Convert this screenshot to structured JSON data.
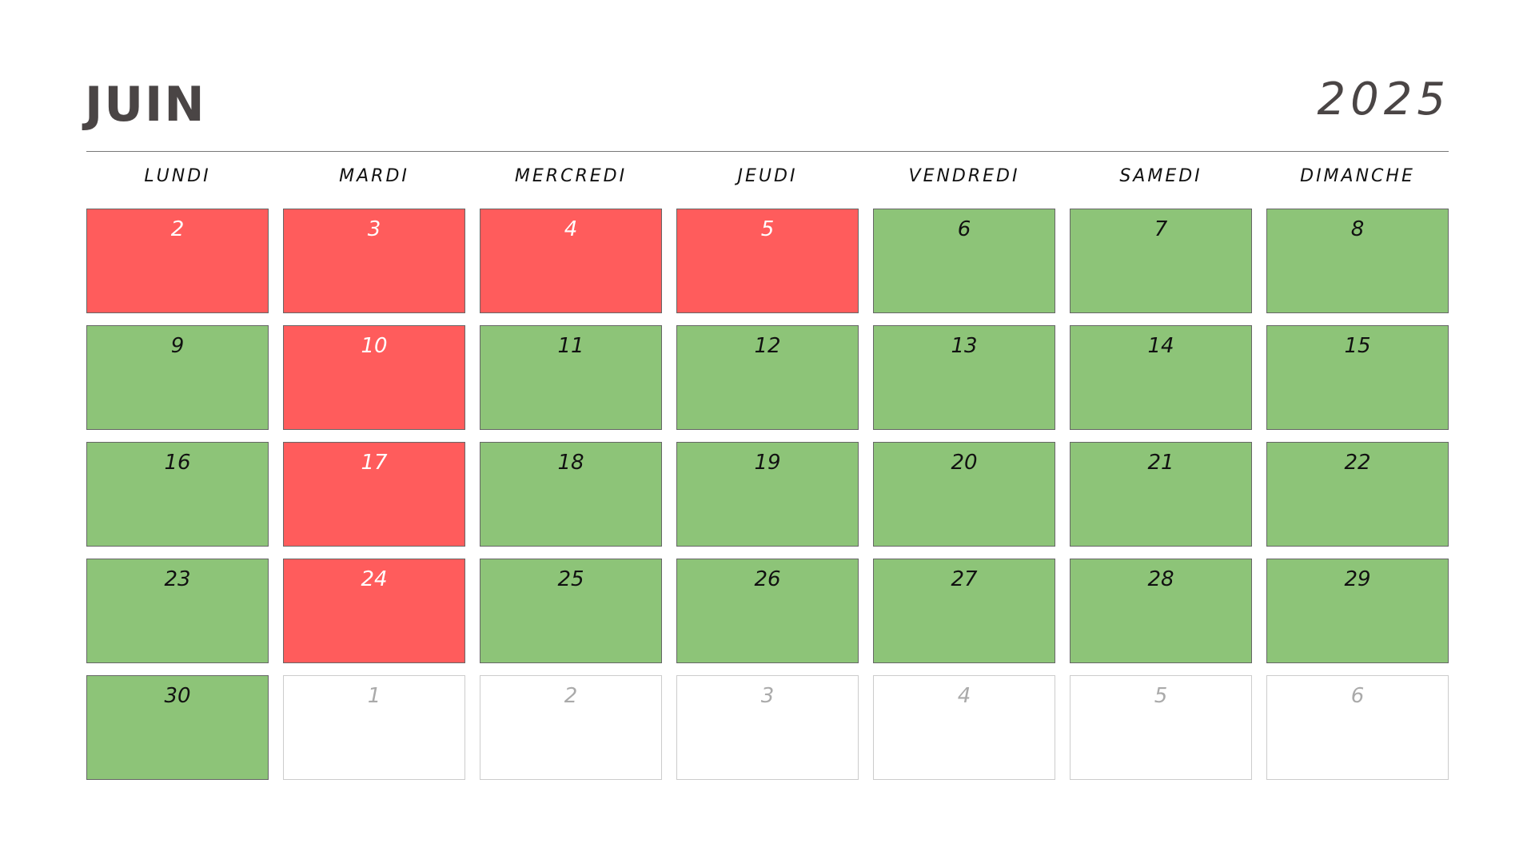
{
  "header": {
    "title": "JUIN",
    "year": "2025"
  },
  "weekdays": [
    "LUNDI",
    "MARDI",
    "MERCREDI",
    "JEUDI",
    "VENDREDI",
    "SAMEDI",
    "DIMANCHE"
  ],
  "weeks": [
    [
      {
        "day": 2,
        "color": "#ff5c5c",
        "text_color": "#ffffff"
      },
      {
        "day": 3,
        "color": "#ff5c5c",
        "text_color": "#ffffff"
      },
      {
        "day": 4,
        "color": "#ff5c5c",
        "text_color": "#ffffff"
      },
      {
        "day": 5,
        "color": "#ff5c5c",
        "text_color": "#ffffff"
      },
      {
        "day": 6,
        "color": "#8dc478",
        "text_color": "#111111"
      },
      {
        "day": 7,
        "color": "#8dc478",
        "text_color": "#111111"
      },
      {
        "day": 8,
        "color": "#8dc478",
        "text_color": "#111111"
      }
    ],
    [
      {
        "day": 9,
        "color": "#8dc478",
        "text_color": "#111111"
      },
      {
        "day": 10,
        "color": "#ff5c5c",
        "text_color": "#ffffff"
      },
      {
        "day": 11,
        "color": "#8dc478",
        "text_color": "#111111"
      },
      {
        "day": 12,
        "color": "#8dc478",
        "text_color": "#111111"
      },
      {
        "day": 13,
        "color": "#8dc478",
        "text_color": "#111111"
      },
      {
        "day": 14,
        "color": "#8dc478",
        "text_color": "#111111"
      },
      {
        "day": 15,
        "color": "#8dc478",
        "text_color": "#111111"
      }
    ],
    [
      {
        "day": 16,
        "color": "#8dc478",
        "text_color": "#111111"
      },
      {
        "day": 17,
        "color": "#ff5c5c",
        "text_color": "#ffffff"
      },
      {
        "day": 18,
        "color": "#8dc478",
        "text_color": "#111111"
      },
      {
        "day": 19,
        "color": "#8dc478",
        "text_color": "#111111"
      },
      {
        "day": 20,
        "color": "#8dc478",
        "text_color": "#111111"
      },
      {
        "day": 21,
        "color": "#8dc478",
        "text_color": "#111111"
      },
      {
        "day": 22,
        "color": "#8dc478",
        "text_color": "#111111"
      }
    ],
    [
      {
        "day": 23,
        "color": "#8dc478",
        "text_color": "#111111"
      },
      {
        "day": 24,
        "color": "#ff5c5c",
        "text_color": "#ffffff"
      },
      {
        "day": 25,
        "color": "#8dc478",
        "text_color": "#111111"
      },
      {
        "day": 26,
        "color": "#8dc478",
        "text_color": "#111111"
      },
      {
        "day": 27,
        "color": "#8dc478",
        "text_color": "#111111"
      },
      {
        "day": 28,
        "color": "#8dc478",
        "text_color": "#111111"
      },
      {
        "day": 29,
        "color": "#8dc478",
        "text_color": "#111111"
      }
    ],
    [
      {
        "day": 30,
        "color": "#8dc478",
        "text_color": "#111111"
      },
      {
        "day": 1,
        "color": "#ffffff",
        "text_color": "#aaaaaa"
      },
      {
        "day": 2,
        "color": "#ffffff",
        "text_color": "#aaaaaa"
      },
      {
        "day": 3,
        "color": "#ffffff",
        "text_color": "#aaaaaa"
      },
      {
        "day": 4,
        "color": "#ffffff",
        "text_color": "#aaaaaa"
      },
      {
        "day": 5,
        "color": "#ffffff",
        "text_color": "#aaaaaa"
      },
      {
        "day": 6,
        "color": "#ffffff",
        "text_color": "#aaaaaa"
      }
    ]
  ]
}
